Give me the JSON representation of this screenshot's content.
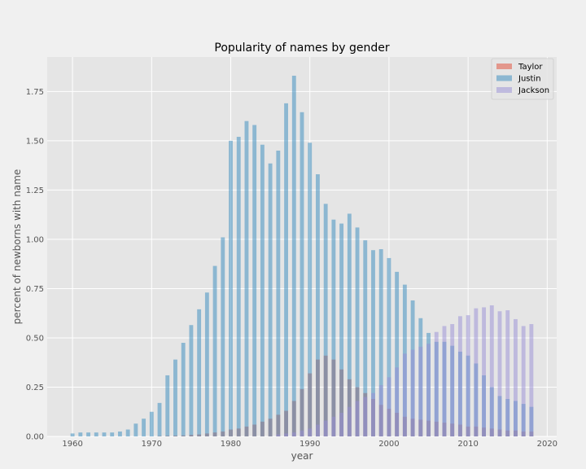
{
  "chart_data": {
    "type": "bar",
    "title": "Popularity of names by gender",
    "xlabel": "year",
    "ylabel": "percent of newborns with name",
    "xlim": [
      1956.8,
      2021.2
    ],
    "ylim": [
      0,
      1.925
    ],
    "xticks": [
      1960,
      1970,
      1980,
      1990,
      2000,
      2010,
      2020
    ],
    "yticks": [
      0.0,
      0.25,
      0.5,
      0.75,
      1.0,
      1.25,
      1.5,
      1.75
    ],
    "ytick_labels": [
      "0.00",
      "0.25",
      "0.50",
      "0.75",
      "1.00",
      "1.25",
      "1.50",
      "1.75"
    ],
    "grid": true,
    "legend_position": "top-right",
    "years": [
      1960,
      1961,
      1962,
      1963,
      1964,
      1965,
      1966,
      1967,
      1968,
      1969,
      1970,
      1971,
      1972,
      1973,
      1974,
      1975,
      1976,
      1977,
      1978,
      1979,
      1980,
      1981,
      1982,
      1983,
      1984,
      1985,
      1986,
      1987,
      1988,
      1989,
      1990,
      1991,
      1992,
      1993,
      1994,
      1995,
      1996,
      1997,
      1998,
      1999,
      2000,
      2001,
      2002,
      2003,
      2004,
      2005,
      2006,
      2007,
      2008,
      2009,
      2010,
      2011,
      2012,
      2013,
      2014,
      2015,
      2016,
      2017,
      2018
    ],
    "series": [
      {
        "name": "Taylor",
        "color": "#e24a33",
        "values": [
          0,
          0,
          0,
          0,
          0,
          0,
          0,
          0,
          0,
          0,
          0,
          0.002,
          0.003,
          0.004,
          0.005,
          0.008,
          0.01,
          0.015,
          0.02,
          0.025,
          0.035,
          0.04,
          0.05,
          0.06,
          0.075,
          0.09,
          0.11,
          0.13,
          0.18,
          0.24,
          0.32,
          0.39,
          0.41,
          0.39,
          0.34,
          0.29,
          0.25,
          0.22,
          0.19,
          0.16,
          0.14,
          0.12,
          0.1,
          0.09,
          0.085,
          0.08,
          0.075,
          0.07,
          0.065,
          0.06,
          0.05,
          0.05,
          0.045,
          0.04,
          0.035,
          0.03,
          0.03,
          0.025,
          0.025
        ]
      },
      {
        "name": "Justin",
        "color": "#348abd",
        "values": [
          0.015,
          0.02,
          0.02,
          0.02,
          0.02,
          0.02,
          0.025,
          0.035,
          0.065,
          0.09,
          0.125,
          0.17,
          0.31,
          0.39,
          0.475,
          0.565,
          0.645,
          0.73,
          0.865,
          1.01,
          1.5,
          1.52,
          1.6,
          1.58,
          1.48,
          1.385,
          1.45,
          1.69,
          1.83,
          1.645,
          1.49,
          1.33,
          1.18,
          1.1,
          1.08,
          1.13,
          1.06,
          0.995,
          0.945,
          0.95,
          0.905,
          0.835,
          0.77,
          0.69,
          0.6,
          0.525,
          0.48,
          0.48,
          0.46,
          0.43,
          0.41,
          0.37,
          0.31,
          0.25,
          0.205,
          0.19,
          0.18,
          0.165,
          0.15
        ]
      },
      {
        "name": "Jackson",
        "color": "#988ed5",
        "values": [
          0,
          0,
          0,
          0,
          0,
          0,
          0,
          0,
          0,
          0,
          0,
          0,
          0,
          0,
          0,
          0,
          0,
          0,
          0,
          0,
          0,
          0,
          0,
          0,
          0,
          0,
          0.01,
          0.015,
          0.02,
          0.03,
          0.04,
          0.06,
          0.08,
          0.1,
          0.12,
          0.15,
          0.18,
          0.2,
          0.22,
          0.26,
          0.3,
          0.35,
          0.42,
          0.44,
          0.455,
          0.47,
          0.53,
          0.56,
          0.57,
          0.61,
          0.615,
          0.65,
          0.655,
          0.665,
          0.635,
          0.64,
          0.595,
          0.56,
          0.57
        ]
      }
    ]
  }
}
